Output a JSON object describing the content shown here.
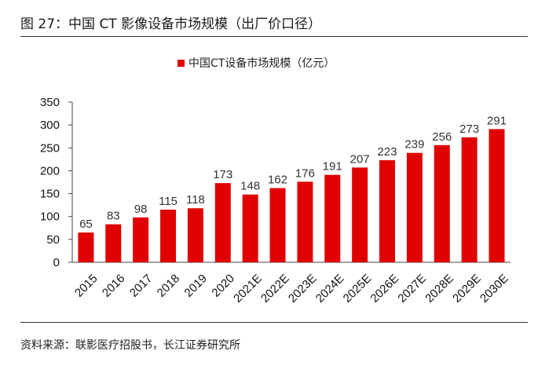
{
  "figure": {
    "title": "图 27：中国 CT 影像设备市场规模（出厂价口径）",
    "source": "资料来源：联影医疗招股书，长江证券研究所"
  },
  "chart_data": {
    "type": "bar",
    "categories": [
      "2015",
      "2016",
      "2017",
      "2018",
      "2019",
      "2020",
      "2021E",
      "2022E",
      "2023E",
      "2024E",
      "2025E",
      "2026E",
      "2027E",
      "2028E",
      "2029E",
      "2030E"
    ],
    "series": [
      {
        "name": "中国CT设备市场规模（亿元）",
        "values": [
          65,
          83,
          98,
          115,
          118,
          173,
          148,
          162,
          176,
          191,
          207,
          223,
          239,
          256,
          273,
          291
        ]
      }
    ],
    "ylim": [
      0,
      350
    ],
    "yticks": [
      0,
      50,
      100,
      150,
      200,
      250,
      300,
      350
    ],
    "legend_position": "top-center",
    "grid": false,
    "bar_color": "#e00000",
    "data_labels": true
  }
}
